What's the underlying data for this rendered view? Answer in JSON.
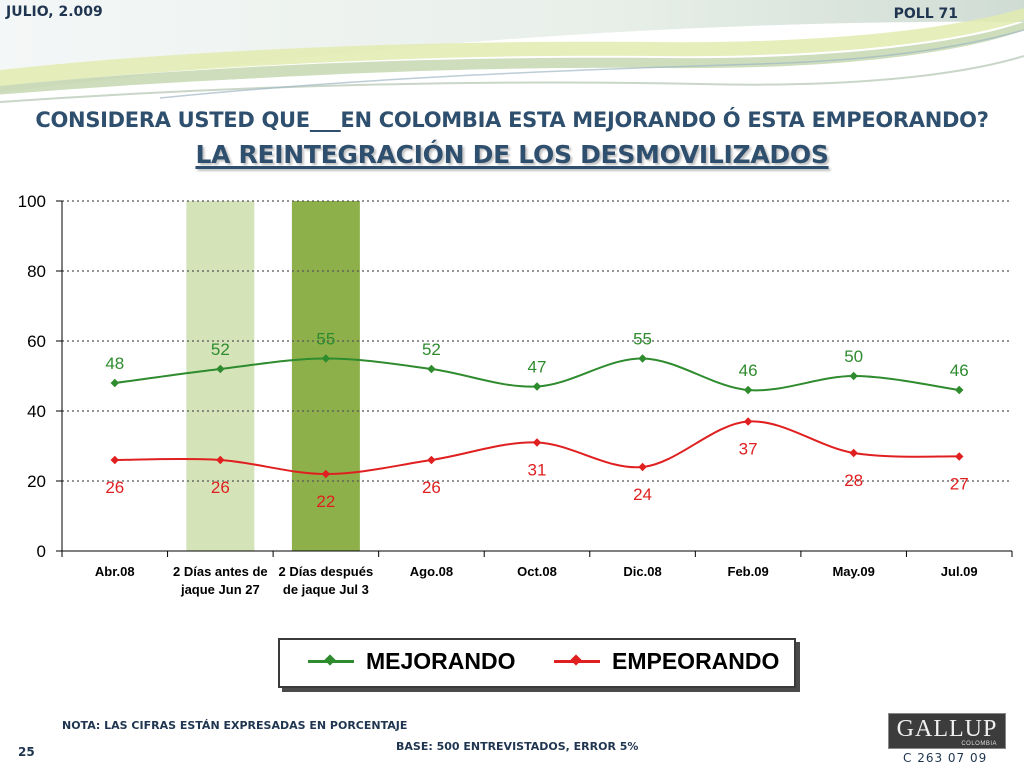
{
  "header": {
    "date": "JULIO, 2.009",
    "poll": "POLL 71"
  },
  "title": {
    "question": "CONSIDERA USTED QUE___EN COLOMBIA ESTA MEJORANDO Ó ESTA EMPEORANDO?",
    "subject": "LA REINTEGRACIÓN DE LOS DESMOVILIZADOS"
  },
  "chart_data": {
    "type": "line",
    "categories": [
      [
        "Abr.08"
      ],
      [
        "2 Días antes de",
        "jaque Jun 27"
      ],
      [
        "2 Días después",
        "de jaque Jul 3"
      ],
      [
        "Ago.08"
      ],
      [
        "Oct.08"
      ],
      [
        "Dic.08"
      ],
      [
        "Feb.09"
      ],
      [
        "May.09"
      ],
      [
        "Jul.09"
      ]
    ],
    "series": [
      {
        "name": "MEJORANDO",
        "color": "#2e8b2e",
        "values": [
          48,
          52,
          55,
          52,
          47,
          55,
          46,
          50,
          46
        ]
      },
      {
        "name": "EMPEORANDO",
        "color": "#e02020",
        "values": [
          26,
          26,
          22,
          26,
          31,
          24,
          37,
          28,
          27
        ]
      }
    ],
    "ylim": [
      0,
      100
    ],
    "yticks": [
      0,
      20,
      40,
      60,
      80,
      100
    ],
    "grid": true,
    "highlight_bands": [
      {
        "category_index": 1,
        "color": "#d4e3b8"
      },
      {
        "category_index": 2,
        "color": "#8db04a"
      }
    ],
    "legend_position": "bottom"
  },
  "footer": {
    "note": "NOTA: LAS CIFRAS ESTÁN EXPRESADAS EN PORCENTAJE",
    "base": "BASE: 500 ENTREVISTADOS, ERROR 5%",
    "page": "25",
    "code": "C 263 07 09",
    "logo_text": "GALLUP",
    "logo_sub": "COLOMBIA"
  }
}
